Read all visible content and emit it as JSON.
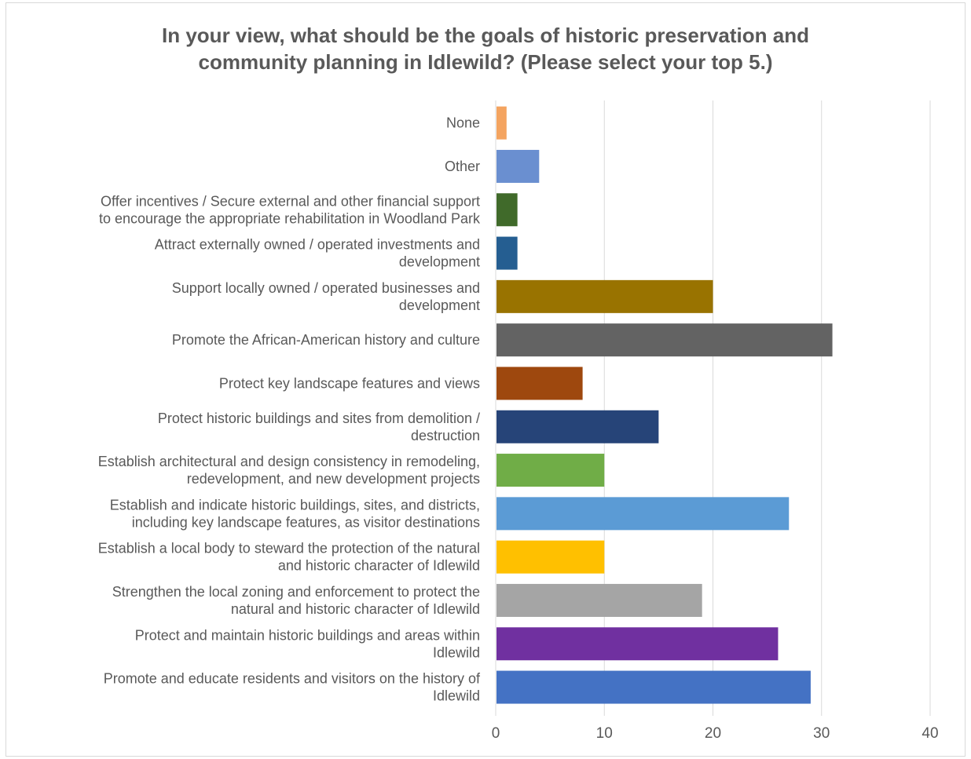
{
  "chart_data": {
    "type": "bar",
    "orientation": "horizontal",
    "title": "In your view, what should be the goals of historic preservation and\ncommunity planning in Idlewild? (Please select your top 5.)",
    "xlabel": "",
    "ylabel": "",
    "xlim": [
      0,
      40
    ],
    "x_ticks": [
      0,
      10,
      20,
      30,
      40
    ],
    "grid": "vertical",
    "legend": "none",
    "categories": [
      "None",
      "Other",
      "Offer incentives / Secure external and other financial support\nto encourage the appropriate rehabilitation in Woodland Park",
      "Attract externally owned / operated investments and\ndevelopment",
      "Support locally owned / operated businesses and\ndevelopment",
      "Promote the African-American history and culture",
      "Protect key landscape features and views",
      "Protect historic buildings and sites from demolition /\ndestruction",
      "Establish architectural and design consistency in remodeling,\nredevelopment, and new development projects",
      "Establish and indicate historic buildings, sites, and districts,\nincluding key landscape features, as visitor destinations",
      "Establish a local body to steward the protection of the natural\nand historic character of Idlewild",
      "Strengthen the local zoning and enforcement to protect the\nnatural and historic character of Idlewild",
      "Protect and maintain historic buildings and areas within\nIdlewild",
      "Promote and educate residents and visitors on the history of\nIdlewild"
    ],
    "values": [
      1,
      4,
      2,
      2,
      20,
      31,
      8,
      15,
      10,
      27,
      10,
      19,
      26,
      29
    ],
    "colors": [
      "#f4a460",
      "#6a8fd0",
      "#406a2a",
      "#255e91",
      "#997300",
      "#636363",
      "#9e480e",
      "#264478",
      "#70ad47",
      "#5b9bd5",
      "#ffc000",
      "#a5a5a5",
      "#7030a0",
      "#4472c4"
    ],
    "gridline_color": "#d9d9d9",
    "text_color": "#595959"
  }
}
